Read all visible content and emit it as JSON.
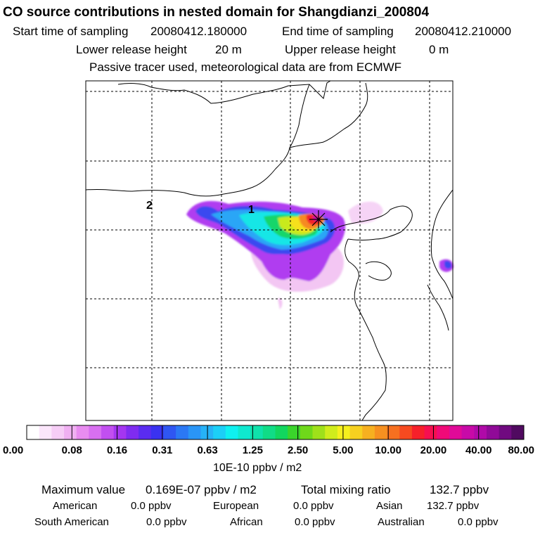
{
  "header": {
    "title": "CO  source contributions in nested domain for Shangdianzi_200804",
    "start_time_label": "Start time of sampling",
    "start_time": "20080412.180000",
    "end_time_label": "End time of sampling",
    "end_time": "20080412.210000",
    "lower_height_label": "Lower release height",
    "lower_height": "20 m",
    "upper_height_label": "Upper release height",
    "upper_height": "0 m",
    "note": "Passive tracer used, meteorological data are from ECMWF"
  },
  "map": {
    "trajectory_markers": [
      "1",
      "2"
    ],
    "receptor_marker": "star-cross-icon"
  },
  "colorbar": {
    "ticks": [
      "0.00",
      "0.08",
      "0.16",
      "0.31",
      "0.63",
      "1.25",
      "2.50",
      "5.00",
      "10.00",
      "20.00",
      "40.00",
      "80.00"
    ],
    "unit": "10E-10 ppbv / m2",
    "colors": [
      "#ffffff",
      "#fbe6fb",
      "#f6cdf6",
      "#f0b0f2",
      "#e88cf0",
      "#d86ff0",
      "#c24ff0",
      "#a436f0",
      "#7f2cf0",
      "#5a2cf0",
      "#3a32f0",
      "#2f56f2",
      "#2b78f4",
      "#2a95f6",
      "#26b2f7",
      "#1ccff7",
      "#0ff0f0",
      "#0fe8cf",
      "#0fe2ab",
      "#10dc86",
      "#12d65e",
      "#3ad42b",
      "#6fd81a",
      "#9fe01a",
      "#d0ec1c",
      "#f6f01e",
      "#f6d020",
      "#f6b020",
      "#f69020",
      "#f67020",
      "#f64a20",
      "#f6202a",
      "#f60f50",
      "#f00a78",
      "#e00a98",
      "#c80aa8",
      "#b00aa8",
      "#900a98",
      "#700a80",
      "#500a60"
    ]
  },
  "summary": {
    "max_label": "Maximum value",
    "max_value": "0.169E-07 ppbv / m2",
    "total_label": "Total mixing ratio",
    "total_value": "132.7 ppbv",
    "regions": [
      {
        "name": "American",
        "value": "0.0 ppbv"
      },
      {
        "name": "European",
        "value": "0.0 ppbv"
      },
      {
        "name": "Asian",
        "value": "132.7 ppbv"
      },
      {
        "name": "South American",
        "value": "0.0 ppbv"
      },
      {
        "name": "African",
        "value": "0.0 ppbv"
      },
      {
        "name": "Australian",
        "value": "0.0 ppbv"
      }
    ]
  }
}
